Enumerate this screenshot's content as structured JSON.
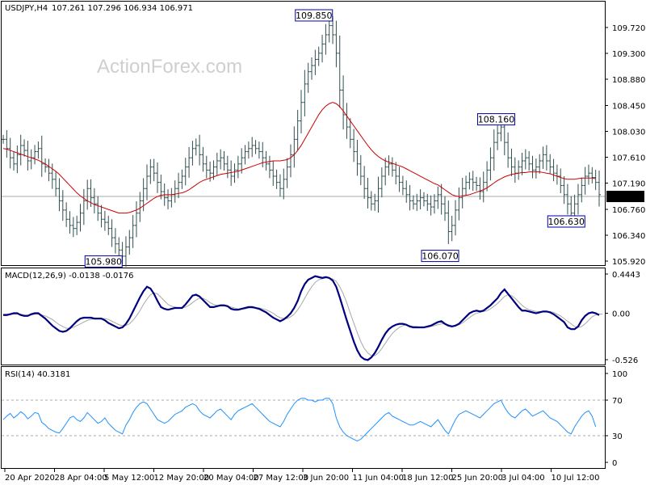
{
  "header": {
    "symbol": "USDJPY,H4",
    "ohlc": "107.261 107.296 106.934 106.971",
    "watermark": "ActionForex.com"
  },
  "colors": {
    "price": "#2f4f4f",
    "ma": "#cc0000",
    "macd": "#00007f",
    "signal": "#a9a9a9",
    "rsi": "#1e90ff",
    "label_border": "#0000aa",
    "label_text": "#00008b"
  },
  "chart_data": [
    {
      "type": "bar",
      "pane": "price",
      "ylim": [
        105.92,
        109.85
      ],
      "y_ticks": [
        "109.720",
        "109.300",
        "108.880",
        "108.450",
        "108.030",
        "107.610",
        "107.190",
        "106.760",
        "106.340",
        "105.920"
      ],
      "current_price": "106.971",
      "series": [
        {
          "name": "",
          "values": [
            107.9,
            107.75,
            107.6,
            107.5,
            107.65,
            107.8,
            107.72,
            107.55,
            107.6,
            107.7,
            107.75,
            107.5,
            107.45,
            107.35,
            107.25,
            107.1,
            106.9,
            106.75,
            106.6,
            106.5,
            106.45,
            106.55,
            106.7,
            106.9,
            107.1,
            106.95,
            106.85,
            106.7,
            106.6,
            106.55,
            106.45,
            106.3,
            106.2,
            106.1,
            106.0,
            106.15,
            106.3,
            106.5,
            106.7,
            106.9,
            107.1,
            107.3,
            107.45,
            107.35,
            107.2,
            107.05,
            106.95,
            106.9,
            107.0,
            107.1,
            107.2,
            107.3,
            107.45,
            107.6,
            107.75,
            107.8,
            107.65,
            107.5,
            107.4,
            107.35,
            107.45,
            107.55,
            107.6,
            107.5,
            107.4,
            107.3,
            107.4,
            107.5,
            107.6,
            107.7,
            107.75,
            107.8,
            107.75,
            107.7,
            107.6,
            107.5,
            107.4,
            107.3,
            107.2,
            107.1,
            107.25,
            107.45,
            107.65,
            107.9,
            108.2,
            108.5,
            108.8,
            109.0,
            109.1,
            109.2,
            109.3,
            109.45,
            109.6,
            109.75,
            109.6,
            109.3,
            108.7,
            108.3,
            108.1,
            107.9,
            107.7,
            107.5,
            107.3,
            107.1,
            106.95,
            106.85,
            106.9,
            107.1,
            107.3,
            107.45,
            107.5,
            107.4,
            107.3,
            107.2,
            107.1,
            107.0,
            106.9,
            106.85,
            106.9,
            106.95,
            106.9,
            106.85,
            106.8,
            106.9,
            107.0,
            106.85,
            106.7,
            106.4,
            106.5,
            106.75,
            106.95,
            107.1,
            107.2,
            107.25,
            107.2,
            107.15,
            107.05,
            107.2,
            107.4,
            107.6,
            107.85,
            108.0,
            108.1,
            107.85,
            107.6,
            107.45,
            107.35,
            107.45,
            107.55,
            107.6,
            107.5,
            107.4,
            107.45,
            107.55,
            107.65,
            107.55,
            107.45,
            107.35,
            107.3,
            107.15,
            107.0,
            106.85,
            106.7,
            106.85,
            107.0,
            107.15,
            107.3,
            107.35,
            107.28,
            107.2,
            107.0
          ]
        },
        {
          "name": "",
          "values": [
            107.75,
            107.74,
            107.72,
            107.7,
            107.68,
            107.66,
            107.64,
            107.62,
            107.6,
            107.58,
            107.56,
            107.53,
            107.5,
            107.46,
            107.42,
            107.38,
            107.33,
            107.27,
            107.21,
            107.15,
            107.09,
            107.03,
            106.98,
            106.94,
            106.9,
            106.87,
            106.84,
            106.82,
            106.8,
            106.78,
            106.76,
            106.74,
            106.72,
            106.7,
            106.7,
            106.7,
            106.71,
            106.73,
            106.75,
            106.78,
            106.82,
            106.86,
            106.9,
            106.94,
            106.97,
            106.99,
            107.0,
            107.0,
            107.0,
            107.01,
            107.02,
            107.03,
            107.05,
            107.08,
            107.12,
            107.16,
            107.2,
            107.23,
            107.25,
            107.27,
            107.29,
            107.31,
            107.33,
            107.34,
            107.35,
            107.36,
            107.37,
            107.38,
            107.4,
            107.42,
            107.44,
            107.46,
            107.48,
            107.5,
            107.52,
            107.53,
            107.54,
            107.55,
            107.55,
            107.55,
            107.56,
            107.57,
            107.6,
            107.65,
            107.72,
            107.8,
            107.9,
            108.0,
            108.1,
            108.2,
            108.3,
            108.38,
            108.44,
            108.48,
            108.5,
            108.48,
            108.43,
            108.36,
            108.28,
            108.2,
            108.12,
            108.04,
            107.96,
            107.88,
            107.8,
            107.73,
            107.67,
            107.62,
            107.58,
            107.55,
            107.53,
            107.51,
            107.49,
            107.47,
            107.45,
            107.42,
            107.39,
            107.36,
            107.33,
            107.3,
            107.27,
            107.24,
            107.21,
            107.18,
            107.16,
            107.12,
            107.08,
            107.04,
            107.0,
            106.98,
            106.97,
            106.98,
            106.99,
            107.0,
            107.02,
            107.04,
            107.06,
            107.08,
            107.11,
            107.15,
            107.19,
            107.23,
            107.26,
            107.29,
            107.31,
            107.33,
            107.34,
            107.35,
            107.36,
            107.36,
            107.37,
            107.37,
            107.37,
            107.37,
            107.36,
            107.35,
            107.34,
            107.32,
            107.3,
            107.28,
            107.26,
            107.25,
            107.25,
            107.25,
            107.26,
            107.27,
            107.27,
            107.27,
            107.27,
            107.26
          ]
        }
      ],
      "annotations": [
        {
          "label": "109.850",
          "x": 93,
          "y": 109.85
        },
        {
          "label": "105.980",
          "x": 33,
          "y": 105.98
        },
        {
          "label": "108.160",
          "x": 145,
          "y": 108.16
        },
        {
          "label": "106.070",
          "x": 129,
          "y": 106.07
        },
        {
          "label": "106.630",
          "x": 165,
          "y": 106.63
        }
      ]
    },
    {
      "type": "line",
      "pane": "macd",
      "title": "MACD(12,26,9) -0.0138 -0.0176",
      "ylim": [
        -0.526,
        0.4443
      ],
      "y_ticks": [
        "0.4443",
        "0.00",
        "-0.526"
      ],
      "series": [
        {
          "name": "",
          "values": [
            -0.02,
            -0.02,
            -0.01,
            0.0,
            0.0,
            -0.02,
            -0.03,
            -0.03,
            -0.01,
            0.0,
            0.0,
            -0.03,
            -0.06,
            -0.1,
            -0.14,
            -0.17,
            -0.2,
            -0.21,
            -0.2,
            -0.17,
            -0.13,
            -0.09,
            -0.06,
            -0.05,
            -0.05,
            -0.05,
            -0.06,
            -0.06,
            -0.06,
            -0.08,
            -0.11,
            -0.13,
            -0.15,
            -0.17,
            -0.16,
            -0.12,
            -0.06,
            0.02,
            0.1,
            0.18,
            0.25,
            0.3,
            0.28,
            0.22,
            0.14,
            0.07,
            0.05,
            0.04,
            0.05,
            0.06,
            0.06,
            0.06,
            0.1,
            0.15,
            0.2,
            0.21,
            0.19,
            0.15,
            0.11,
            0.07,
            0.07,
            0.08,
            0.09,
            0.09,
            0.08,
            0.05,
            0.04,
            0.04,
            0.05,
            0.06,
            0.07,
            0.07,
            0.06,
            0.05,
            0.03,
            0.01,
            -0.02,
            -0.05,
            -0.07,
            -0.09,
            -0.07,
            -0.04,
            0.0,
            0.06,
            0.14,
            0.25,
            0.33,
            0.38,
            0.4,
            0.42,
            0.41,
            0.4,
            0.41,
            0.4,
            0.37,
            0.3,
            0.18,
            0.05,
            -0.08,
            -0.2,
            -0.32,
            -0.42,
            -0.49,
            -0.52,
            -0.53,
            -0.5,
            -0.45,
            -0.38,
            -0.3,
            -0.23,
            -0.18,
            -0.15,
            -0.13,
            -0.12,
            -0.12,
            -0.13,
            -0.15,
            -0.16,
            -0.16,
            -0.16,
            -0.16,
            -0.15,
            -0.14,
            -0.12,
            -0.1,
            -0.09,
            -0.12,
            -0.14,
            -0.15,
            -0.14,
            -0.12,
            -0.08,
            -0.04,
            0.0,
            0.02,
            0.03,
            0.02,
            0.03,
            0.06,
            0.09,
            0.13,
            0.17,
            0.23,
            0.27,
            0.22,
            0.17,
            0.12,
            0.07,
            0.03,
            0.03,
            0.02,
            0.01,
            0.0,
            0.01,
            0.02,
            0.02,
            0.01,
            -0.01,
            -0.04,
            -0.07,
            -0.1,
            -0.16,
            -0.18,
            -0.18,
            -0.15,
            -0.08,
            -0.03,
            0.0,
            0.01,
            0.0,
            -0.02
          ]
        },
        {
          "name": "",
          "values": [
            -0.01,
            -0.01,
            -0.01,
            -0.01,
            -0.01,
            -0.01,
            -0.02,
            -0.02,
            -0.02,
            -0.01,
            -0.01,
            -0.02,
            -0.03,
            -0.05,
            -0.07,
            -0.1,
            -0.13,
            -0.15,
            -0.17,
            -0.17,
            -0.16,
            -0.14,
            -0.12,
            -0.1,
            -0.08,
            -0.07,
            -0.06,
            -0.06,
            -0.06,
            -0.06,
            -0.07,
            -0.09,
            -0.11,
            -0.13,
            -0.14,
            -0.14,
            -0.12,
            -0.08,
            -0.03,
            0.03,
            0.1,
            0.16,
            0.21,
            0.23,
            0.22,
            0.18,
            0.14,
            0.1,
            0.08,
            0.07,
            0.06,
            0.06,
            0.07,
            0.09,
            0.12,
            0.15,
            0.17,
            0.17,
            0.15,
            0.12,
            0.1,
            0.09,
            0.08,
            0.08,
            0.08,
            0.07,
            0.06,
            0.05,
            0.05,
            0.05,
            0.06,
            0.06,
            0.06,
            0.06,
            0.05,
            0.04,
            0.02,
            0.0,
            -0.03,
            -0.05,
            -0.06,
            -0.06,
            -0.04,
            -0.01,
            0.04,
            0.1,
            0.17,
            0.24,
            0.3,
            0.35,
            0.38,
            0.39,
            0.4,
            0.4,
            0.39,
            0.36,
            0.3,
            0.22,
            0.12,
            0.0,
            -0.11,
            -0.22,
            -0.32,
            -0.4,
            -0.45,
            -0.48,
            -0.48,
            -0.45,
            -0.4,
            -0.34,
            -0.28,
            -0.23,
            -0.19,
            -0.16,
            -0.14,
            -0.13,
            -0.14,
            -0.15,
            -0.15,
            -0.16,
            -0.16,
            -0.16,
            -0.15,
            -0.14,
            -0.13,
            -0.12,
            -0.12,
            -0.13,
            -0.14,
            -0.14,
            -0.13,
            -0.11,
            -0.08,
            -0.05,
            -0.02,
            0.0,
            0.01,
            0.02,
            0.03,
            0.05,
            0.08,
            0.11,
            0.15,
            0.19,
            0.21,
            0.2,
            0.17,
            0.13,
            0.09,
            0.06,
            0.04,
            0.03,
            0.02,
            0.02,
            0.02,
            0.02,
            0.02,
            0.01,
            -0.01,
            -0.03,
            -0.06,
            -0.09,
            -0.12,
            -0.15,
            -0.16,
            -0.15,
            -0.12,
            -0.08,
            -0.04,
            -0.02,
            -0.01,
            -0.01
          ]
        }
      ]
    },
    {
      "type": "line",
      "pane": "rsi",
      "title": "RSI(14) 40.3181",
      "ylim": [
        0,
        100
      ],
      "y_ticks": [
        "100",
        "70",
        "30",
        "0"
      ],
      "levels": [
        70,
        30
      ],
      "series": [
        {
          "name": "",
          "values": [
            48,
            52,
            55,
            50,
            53,
            57,
            54,
            49,
            52,
            56,
            55,
            45,
            42,
            38,
            36,
            34,
            33,
            38,
            44,
            50,
            52,
            48,
            46,
            50,
            56,
            52,
            48,
            44,
            46,
            50,
            44,
            40,
            36,
            34,
            32,
            42,
            48,
            56,
            62,
            66,
            68,
            66,
            60,
            54,
            48,
            46,
            44,
            46,
            50,
            54,
            56,
            58,
            62,
            64,
            66,
            64,
            58,
            54,
            52,
            50,
            54,
            58,
            60,
            56,
            52,
            48,
            54,
            58,
            60,
            62,
            64,
            66,
            62,
            58,
            54,
            50,
            46,
            44,
            42,
            40,
            46,
            54,
            60,
            66,
            70,
            72,
            72,
            70,
            70,
            68,
            70,
            70,
            72,
            72,
            66,
            50,
            40,
            34,
            30,
            28,
            26,
            24,
            26,
            30,
            34,
            38,
            42,
            46,
            50,
            54,
            56,
            52,
            50,
            48,
            46,
            44,
            42,
            42,
            44,
            46,
            44,
            42,
            40,
            44,
            48,
            42,
            36,
            32,
            40,
            48,
            54,
            56,
            58,
            56,
            54,
            52,
            50,
            54,
            58,
            62,
            66,
            68,
            70,
            62,
            56,
            52,
            50,
            54,
            58,
            60,
            56,
            52,
            54,
            56,
            58,
            54,
            50,
            48,
            46,
            42,
            38,
            34,
            32,
            40,
            46,
            52,
            56,
            58,
            52,
            40
          ]
        }
      ]
    }
  ],
  "x_labels": [
    "20 Apr 2020",
    "28 Apr 04:00",
    "5 May 12:00",
    "12 May 20:00",
    "20 May 04:00",
    "27 May 12:00",
    "3 Jun 20:00",
    "11 Jun 04:00",
    "18 Jun 12:00",
    "25 Jun 20:00",
    "3 Jul 04:00",
    "10 Jul 12:00"
  ]
}
